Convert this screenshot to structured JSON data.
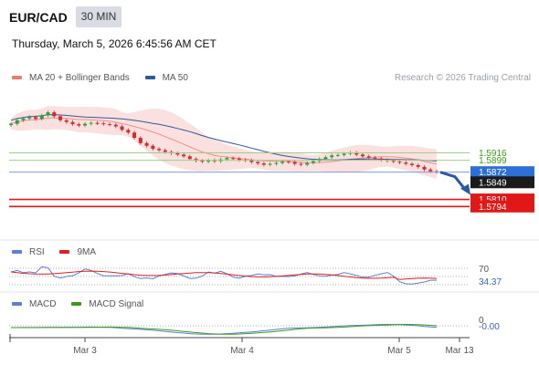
{
  "header": {
    "symbol": "EUR/CAD",
    "timeframe": "30 MIN",
    "timestamp": "Thursday, March 5, 2026 6:45:56 AM CET"
  },
  "legend_main": [
    {
      "label": "MA 20 + Bollinger Bands",
      "color": "#f07a72"
    },
    {
      "label": "MA 50",
      "color": "#2c5aa0"
    }
  ],
  "credit": "Research © 2026 Trading Central",
  "legend_rsi": [
    {
      "label": "RSI",
      "color": "#5b7fd6"
    },
    {
      "label": "9MA",
      "color": "#e02020"
    }
  ],
  "legend_macd": [
    {
      "label": "MACD",
      "color": "#5b7fd6"
    },
    {
      "label": "MACD Signal",
      "color": "#3c9a1a"
    }
  ],
  "colors": {
    "up": "#2e9e3c",
    "down": "#d62a2a",
    "band": "#f6c9c6",
    "ma20": "#f07a72",
    "ma50": "#2c5aa0",
    "arrow": "#2c5aa0"
  },
  "chart_data": {
    "type": "candlestick",
    "price_range": [
      1.572,
      1.606
    ],
    "x_labels": [
      "Mar 3",
      "Mar 4",
      "Mar 5",
      "Mar 13"
    ],
    "closes": [
      1.5982,
      1.599,
      1.5994,
      1.5997,
      1.5993,
      1.6001,
      1.6008,
      1.5999,
      1.599,
      1.5986,
      1.5981,
      1.5978,
      1.5982,
      1.5984,
      1.5983,
      1.5981,
      1.598,
      1.5976,
      1.5968,
      1.5962,
      1.595,
      1.5938,
      1.5932,
      1.5925,
      1.5922,
      1.5918,
      1.5915,
      1.5912,
      1.5908,
      1.5902,
      1.5898,
      1.5896,
      1.5899,
      1.5897,
      1.5901,
      1.5904,
      1.5903,
      1.59,
      1.5899,
      1.5895,
      1.5892,
      1.5889,
      1.5891,
      1.5893,
      1.5896,
      1.5895,
      1.5891,
      1.5889,
      1.5893,
      1.5897,
      1.5902,
      1.5906,
      1.591,
      1.5911,
      1.5914,
      1.5916,
      1.5912,
      1.5908,
      1.5905,
      1.5903,
      1.59,
      1.5898,
      1.5896,
      1.5894,
      1.5891,
      1.5888,
      1.5884,
      1.5878,
      1.5874,
      1.5872
    ],
    "levels": [
      {
        "label": "1.5916",
        "value": 1.5916,
        "style": "green-line"
      },
      {
        "label": "1.5899",
        "value": 1.5899,
        "style": "green-line"
      },
      {
        "label": "1.5872",
        "value": 1.5872,
        "style": "blue-tag"
      },
      {
        "label": "1.5849",
        "value": 1.5849,
        "style": "dark-tag"
      },
      {
        "label": "1.5810",
        "value": 1.581,
        "style": "red-tag"
      },
      {
        "label": "1.5794",
        "value": 1.5794,
        "style": "red-tag"
      }
    ],
    "rsi": {
      "level": "70",
      "current": "34.37"
    },
    "macd": {
      "level": "0",
      "current": "-0.00"
    }
  }
}
